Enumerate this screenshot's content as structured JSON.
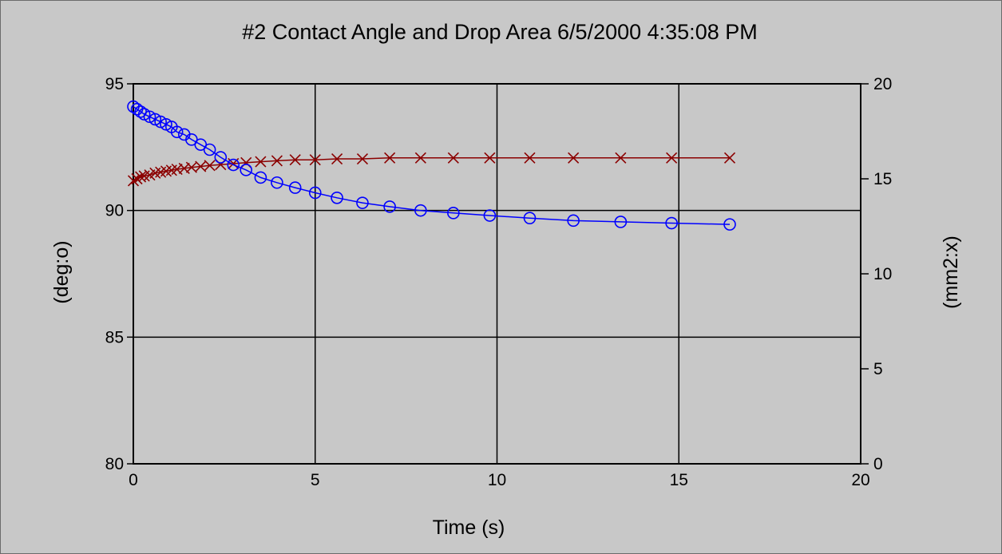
{
  "chart_data": {
    "type": "line",
    "title": "#2 Contact Angle and Drop Area  6/5/2000 4:35:08 PM",
    "xlabel": "Time (s)",
    "ylabel_left": "(deg:o)",
    "ylabel_right": "(mm2:x)",
    "xlim": [
      0,
      20
    ],
    "ylim_left": [
      80,
      95
    ],
    "ylim_right": [
      0,
      20
    ],
    "x_ticks": [
      "0",
      "5",
      "10",
      "15",
      "20"
    ],
    "y_ticks_left": [
      "80",
      "85",
      "90",
      "95"
    ],
    "y_ticks_right": [
      "0",
      "5",
      "10",
      "15",
      "20"
    ],
    "grid": true,
    "series": [
      {
        "axis": "left",
        "marker": "circle",
        "color": "#0000ff",
        "x": [
          0.0,
          0.1,
          0.2,
          0.3,
          0.45,
          0.6,
          0.75,
          0.9,
          1.05,
          1.2,
          1.4,
          1.6,
          1.85,
          2.1,
          2.4,
          2.75,
          3.1,
          3.5,
          3.95,
          4.45,
          5.0,
          5.6,
          6.3,
          7.05,
          7.9,
          8.8,
          9.8,
          10.9,
          12.1,
          13.4,
          14.8,
          16.4
        ],
        "y": [
          94.1,
          94.0,
          93.9,
          93.8,
          93.7,
          93.6,
          93.5,
          93.4,
          93.3,
          93.1,
          93.0,
          92.8,
          92.6,
          92.4,
          92.1,
          91.8,
          91.6,
          91.3,
          91.1,
          90.9,
          90.7,
          90.5,
          90.3,
          90.15,
          90.0,
          89.9,
          89.8,
          89.7,
          89.6,
          89.55,
          89.5,
          89.45
        ]
      },
      {
        "axis": "right",
        "marker": "x",
        "color": "#8b0000",
        "x": [
          0.0,
          0.1,
          0.2,
          0.3,
          0.45,
          0.6,
          0.75,
          0.9,
          1.05,
          1.2,
          1.4,
          1.6,
          1.85,
          2.1,
          2.4,
          2.75,
          3.1,
          3.5,
          3.95,
          4.45,
          5.0,
          5.6,
          6.3,
          7.05,
          7.9,
          8.8,
          9.8,
          10.9,
          12.1,
          13.4,
          14.8,
          16.4
        ],
        "y": [
          14.9,
          15.0,
          15.1,
          15.15,
          15.2,
          15.3,
          15.35,
          15.4,
          15.45,
          15.5,
          15.55,
          15.6,
          15.65,
          15.7,
          15.75,
          15.8,
          15.85,
          15.9,
          15.95,
          16.0,
          16.0,
          16.05,
          16.05,
          16.1,
          16.1,
          16.1,
          16.1,
          16.1,
          16.1,
          16.1,
          16.1,
          16.1
        ]
      }
    ]
  },
  "colors": {
    "background": "#c8c8c8",
    "grid": "#000000",
    "angle_series": "#0000ff",
    "area_series": "#8b0000"
  }
}
